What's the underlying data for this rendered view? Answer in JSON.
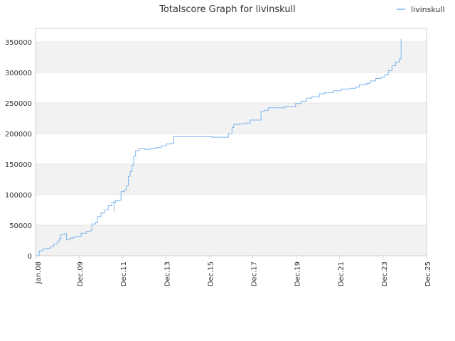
{
  "chart_data": {
    "type": "line",
    "title": "Totalscore Graph for livinskull",
    "xlabel": "",
    "ylabel": "",
    "legend": {
      "placement": "top-right",
      "entries": [
        "livinskull"
      ]
    },
    "grid": true,
    "y_ticks": [
      "0",
      "50000",
      "100000",
      "150000",
      "200000",
      "250000",
      "300000",
      "350000"
    ],
    "x_ticks": [
      "Jan.08",
      "Dec.09",
      "Dec.11",
      "Dec.13",
      "Dec.15",
      "Dec.17",
      "Dec.19",
      "Dec.21",
      "Dec.23",
      "Dec.25"
    ],
    "ylim": [
      0,
      372000
    ],
    "xlim": [
      "2008-01",
      "2025-12"
    ],
    "colors": {
      "series": "#7cb5ec",
      "band": "#f2f2f2",
      "grid": "#e6e6e6"
    },
    "series": [
      {
        "name": "livinskull",
        "points": [
          [
            "2008-01",
            0
          ],
          [
            "2008-03",
            8000
          ],
          [
            "2008-05",
            11000
          ],
          [
            "2008-07",
            12000
          ],
          [
            "2008-09",
            15000
          ],
          [
            "2008-11",
            19000
          ],
          [
            "2009-01",
            23000
          ],
          [
            "2009-02",
            28000
          ],
          [
            "2009-03",
            35000
          ],
          [
            "2009-05",
            36000
          ],
          [
            "2009-06",
            26000
          ],
          [
            "2009-08",
            29000
          ],
          [
            "2009-10",
            31000
          ],
          [
            "2009-12",
            32000
          ],
          [
            "2010-02",
            37000
          ],
          [
            "2010-05",
            40000
          ],
          [
            "2010-07",
            41000
          ],
          [
            "2010-08",
            52000
          ],
          [
            "2010-10",
            54000
          ],
          [
            "2010-11",
            64000
          ],
          [
            "2011-01",
            70000
          ],
          [
            "2011-03",
            75000
          ],
          [
            "2011-05",
            82000
          ],
          [
            "2011-07",
            87000
          ],
          [
            "2011-09",
            90000
          ],
          [
            "2011-11",
            91000
          ],
          [
            "2011-12",
            105000
          ],
          [
            "2012-02",
            108000
          ],
          [
            "2012-03",
            115000
          ],
          [
            "2012-04",
            130000
          ],
          [
            "2012-05",
            138000
          ],
          [
            "2012-06",
            148000
          ],
          [
            "2012-07",
            163000
          ],
          [
            "2012-08",
            172000
          ],
          [
            "2012-10",
            175000
          ],
          [
            "2013-01",
            174000
          ],
          [
            "2013-04",
            175000
          ],
          [
            "2013-07",
            177000
          ],
          [
            "2013-10",
            180000
          ],
          [
            "2014-01",
            183000
          ],
          [
            "2014-04",
            184000
          ],
          [
            "2014-05",
            195000
          ],
          [
            "2015-03",
            195000
          ],
          [
            "2015-09",
            195000
          ],
          [
            "2016-02",
            194000
          ],
          [
            "2016-08",
            194000
          ],
          [
            "2016-11",
            200000
          ],
          [
            "2017-01",
            210000
          ],
          [
            "2017-02",
            215000
          ],
          [
            "2017-05",
            216000
          ],
          [
            "2017-09",
            217000
          ],
          [
            "2017-11",
            222000
          ],
          [
            "2018-03",
            222000
          ],
          [
            "2018-05",
            236000
          ],
          [
            "2018-07",
            238000
          ],
          [
            "2018-09",
            242000
          ],
          [
            "2019-03",
            242000
          ],
          [
            "2019-06",
            244000
          ],
          [
            "2019-11",
            244000
          ],
          [
            "2019-12",
            249000
          ],
          [
            "2020-03",
            253000
          ],
          [
            "2020-06",
            258000
          ],
          [
            "2020-09",
            260000
          ],
          [
            "2021-01",
            265000
          ],
          [
            "2021-04",
            267000
          ],
          [
            "2021-09",
            270000
          ],
          [
            "2022-01",
            273000
          ],
          [
            "2022-06",
            274000
          ],
          [
            "2022-09",
            276000
          ],
          [
            "2022-11",
            280000
          ],
          [
            "2023-03",
            282000
          ],
          [
            "2023-05",
            286000
          ],
          [
            "2023-08",
            290000
          ],
          [
            "2023-11",
            292000
          ],
          [
            "2024-01",
            296000
          ],
          [
            "2024-03",
            303000
          ],
          [
            "2024-05",
            311000
          ],
          [
            "2024-07",
            317000
          ],
          [
            "2024-09",
            322000
          ],
          [
            "2024-10",
            340000
          ],
          [
            "2024-10",
            355000
          ]
        ]
      }
    ]
  }
}
